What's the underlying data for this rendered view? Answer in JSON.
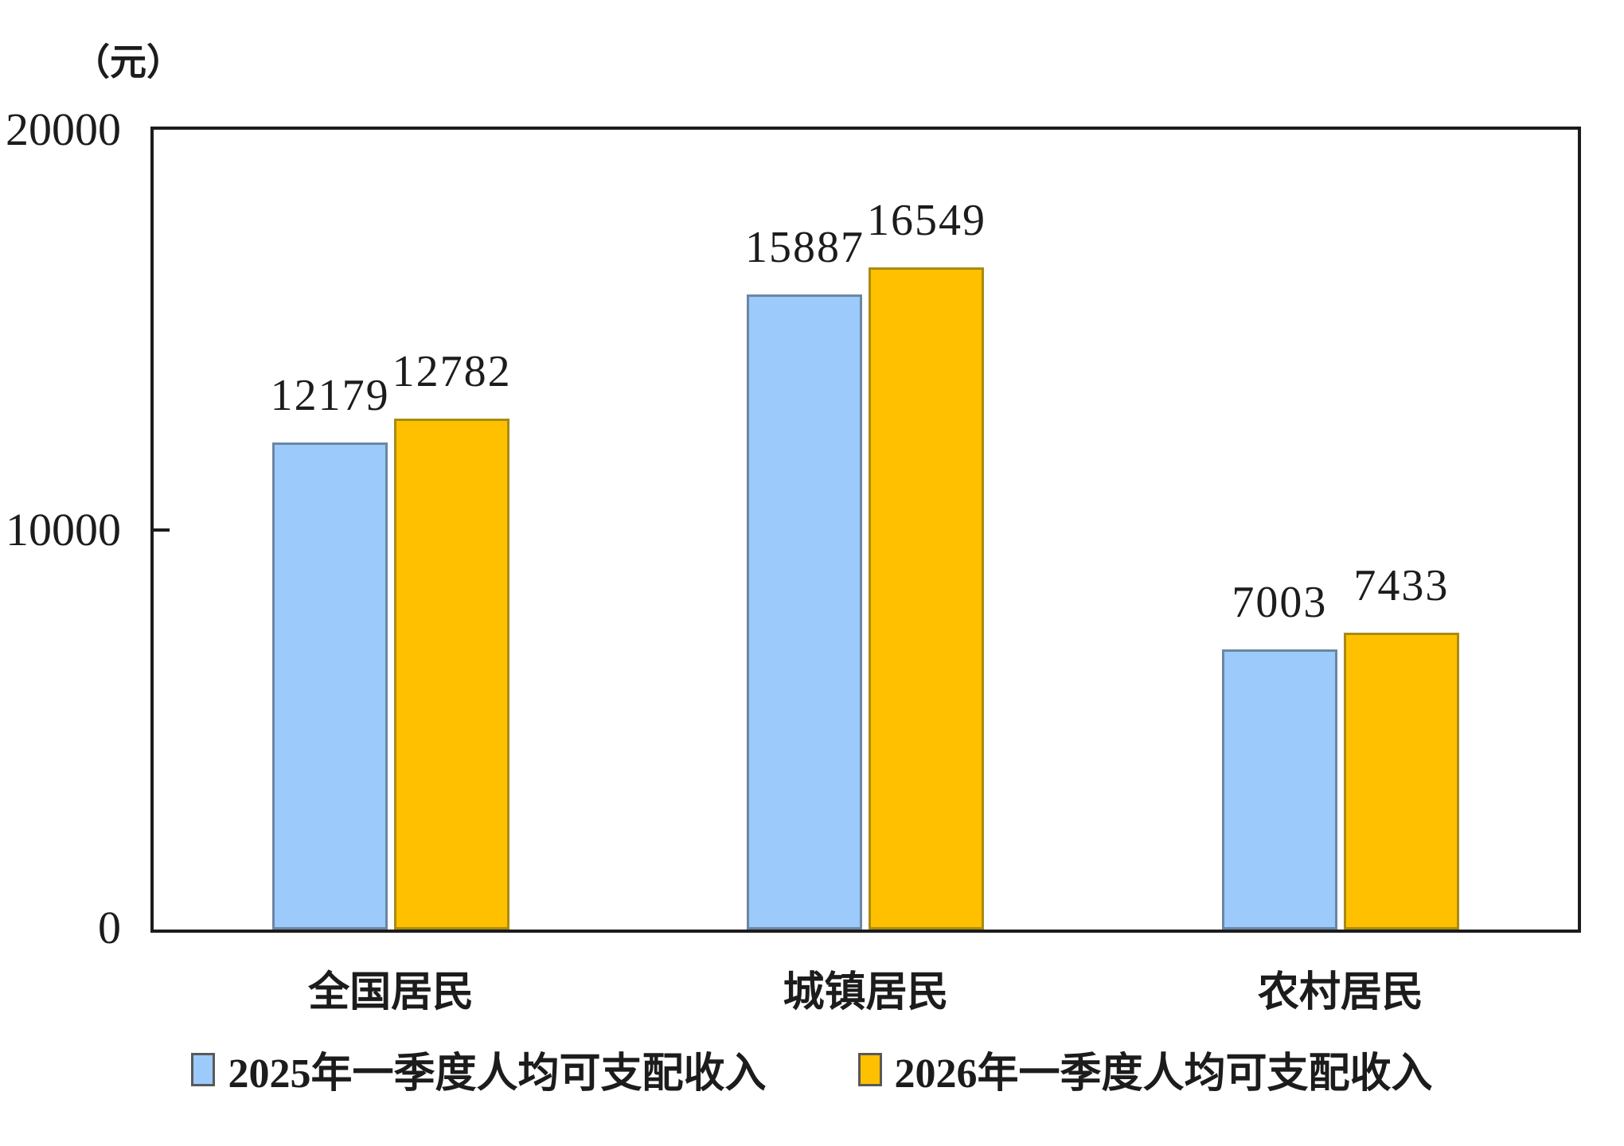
{
  "chart_data": {
    "type": "bar",
    "title": "",
    "unit_label": "（元）",
    "categories": [
      "全国居民",
      "城镇居民",
      "农村居民"
    ],
    "series": [
      {
        "name": "2025年一季度人均可支配收入",
        "values": [
          12179,
          15887,
          7003
        ],
        "fill": "#9BCAFB",
        "border": "#6C86A2"
      },
      {
        "name": "2026年一季度人均可支配收入",
        "values": [
          12782,
          16549,
          7433
        ],
        "fill": "#FFC000",
        "border": "#A98B12"
      }
    ],
    "ylim": [
      0,
      20000
    ],
    "ytick_labels": [
      "20000",
      "10000",
      "0"
    ],
    "grid": false,
    "legend_position": "bottom",
    "colors": {
      "axis": "#1C1C1C",
      "text": "#1C1C1C",
      "background": "#FFFFFF"
    }
  }
}
